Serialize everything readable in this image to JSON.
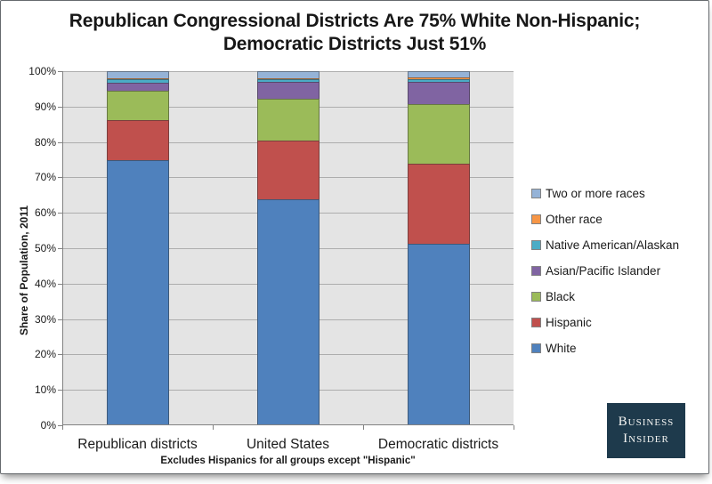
{
  "title": {
    "line1": "Republican Congressional Districts Are 75% White Non-Hispanic;",
    "line2": "Democratic Districts Just 51%"
  },
  "footnote": "Excludes Hispanics for all groups except \"Hispanic\"",
  "branding": {
    "line1": "Business",
    "line2": "Insider",
    "bg_color": "#1E3A4C"
  },
  "colors": {
    "plot_background": "#E4E4E4",
    "gridline": "#ADADAD",
    "axis": "#828282"
  },
  "chart_data": {
    "type": "bar",
    "stacked": true,
    "title": "Republican Congressional Districts Are 75% White Non-Hispanic; Democratic Districts Just 51%",
    "ylabel": "Share of Population, 2011",
    "xlabel": "",
    "ylim": [
      0,
      100
    ],
    "grid": true,
    "legend_position": "right",
    "legend_order": "reverse_of_stack",
    "y_tick_labels": [
      "0%",
      "10%",
      "20%",
      "30%",
      "40%",
      "50%",
      "60%",
      "70%",
      "80%",
      "90%",
      "100%"
    ],
    "categories": [
      "Republican districts",
      "United States",
      "Democratic districts"
    ],
    "series": [
      {
        "name": "White",
        "color": "#4F81BD",
        "values": [
          74.9,
          63.8,
          51.2
        ]
      },
      {
        "name": "Hispanic",
        "color": "#C0504D",
        "values": [
          11.4,
          16.6,
          22.6
        ]
      },
      {
        "name": "Black",
        "color": "#9BBB59",
        "values": [
          8.2,
          11.9,
          16.8
        ]
      },
      {
        "name": "Asian/Pacific Islander",
        "color": "#8064A2",
        "values": [
          2.2,
          4.7,
          6.5
        ]
      },
      {
        "name": "Native American/Alaskan",
        "color": "#4BACC6",
        "values": [
          1.1,
          0.8,
          0.7
        ]
      },
      {
        "name": "Other race",
        "color": "#F79646",
        "values": [
          0.3,
          0.3,
          0.4
        ]
      },
      {
        "name": "Two or more races",
        "color": "#95B3D7",
        "values": [
          1.9,
          1.9,
          1.8
        ]
      }
    ]
  }
}
